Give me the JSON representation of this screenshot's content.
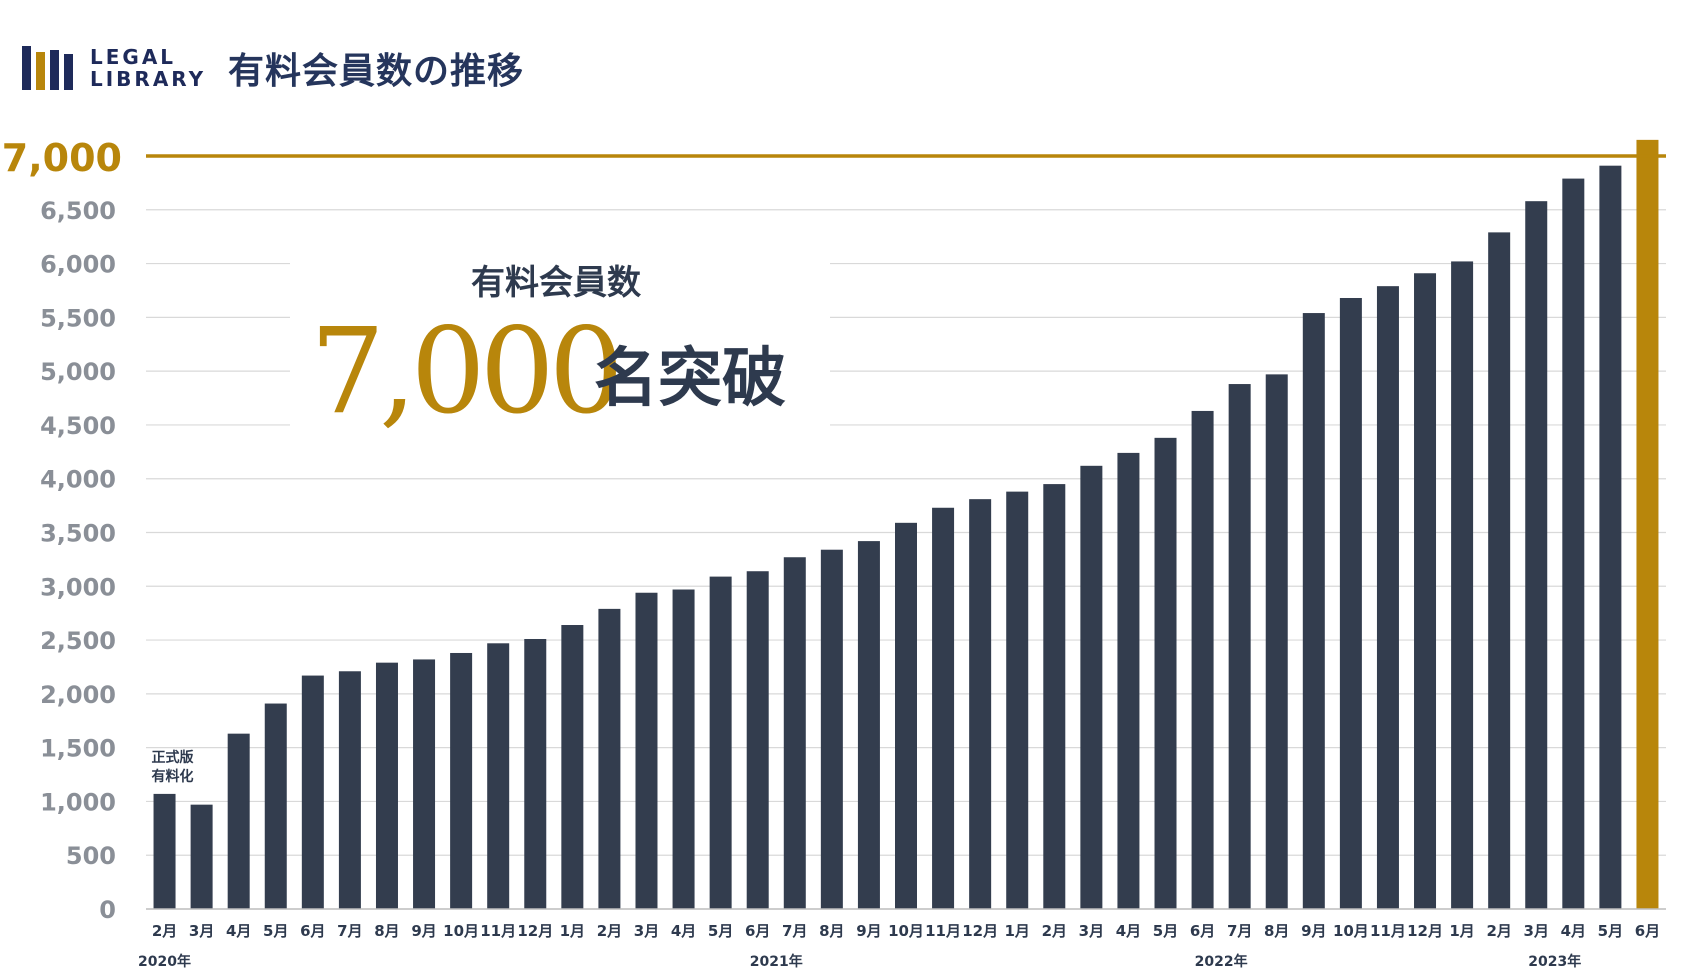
{
  "header": {
    "logo_line1": "LEGAL",
    "logo_line2": "LIBRARY",
    "logo_colors": [
      "#1e2a5a",
      "#b8860b",
      "#1e2a5a",
      "#1e2a5a"
    ],
    "title": "有料会員数の推移"
  },
  "chart_data": {
    "type": "bar",
    "ylim": [
      0,
      7000
    ],
    "yticks": [
      0,
      500,
      1000,
      1500,
      2000,
      2500,
      3000,
      3500,
      4000,
      4500,
      5000,
      5500,
      6000,
      6500,
      7000
    ],
    "ytick_labels": [
      "0",
      "500",
      "1,000",
      "1,500",
      "2,000",
      "2,500",
      "3,000",
      "3,500",
      "4,000",
      "4,500",
      "5,000",
      "5,500",
      "6,000",
      "6,500",
      "7,000"
    ],
    "grid": true,
    "categories": [
      "2月",
      "3月",
      "4月",
      "5月",
      "6月",
      "7月",
      "8月",
      "9月",
      "10月",
      "11月",
      "12月",
      "1月",
      "2月",
      "3月",
      "4月",
      "5月",
      "6月",
      "7月",
      "8月",
      "9月",
      "10月",
      "11月",
      "12月",
      "1月",
      "2月",
      "3月",
      "4月",
      "5月",
      "6月",
      "7月",
      "8月",
      "9月",
      "10月",
      "11月",
      "12月",
      "1月",
      "2月",
      "3月",
      "4月",
      "5月",
      "6月"
    ],
    "values": [
      1070,
      970,
      1630,
      1910,
      2170,
      2210,
      2290,
      2320,
      2380,
      2470,
      2510,
      2640,
      2790,
      2940,
      2970,
      3090,
      3140,
      3270,
      3340,
      3420,
      3590,
      3730,
      3810,
      3880,
      3950,
      4120,
      4240,
      4380,
      4630,
      4880,
      4970,
      5540,
      5680,
      5790,
      5910,
      6020,
      6290,
      6580,
      6790,
      6910,
      7150
    ],
    "highlight_index": 40,
    "bar_color": "#333d4e",
    "highlight_color": "#b8860b",
    "target_line": {
      "value": 7000,
      "label": "7,000",
      "color": "#b8860b"
    },
    "years": [
      {
        "label": "2020年",
        "start_index": 0
      },
      {
        "label": "2021年",
        "start_index": 11
      },
      {
        "label": "2022年",
        "start_index": 23
      },
      {
        "label": "2023年",
        "start_index": 35
      }
    ],
    "annotations": [
      {
        "text_line1": "正式版",
        "text_line2": "有料化",
        "index": 0
      }
    ],
    "callout": {
      "subtitle": "有料会員数",
      "number": "7,000",
      "suffix": "名突破",
      "number_color": "#b8860b",
      "text_color": "#2e3a4e"
    }
  }
}
